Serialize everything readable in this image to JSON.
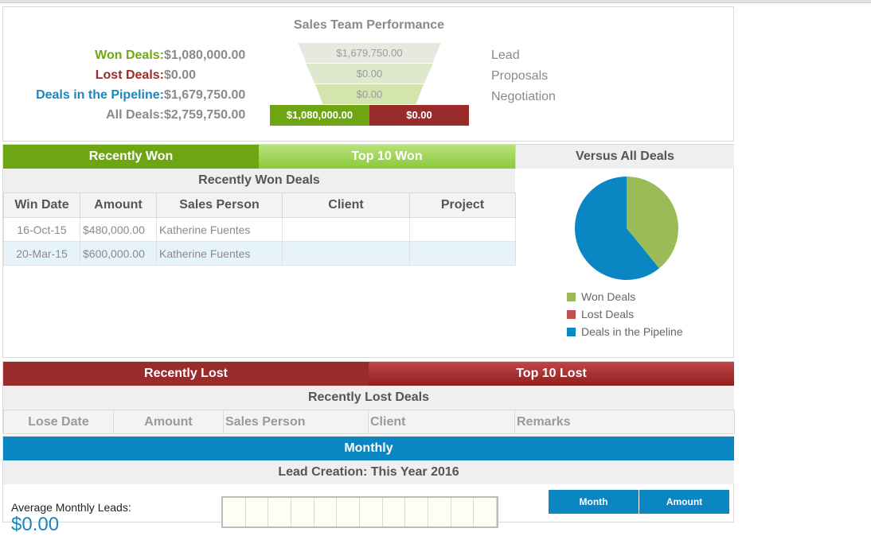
{
  "performance": {
    "title": "Sales Team Performance",
    "stats": [
      {
        "label": "Won Deals:",
        "value": "$1,080,000.00"
      },
      {
        "label": "Lost Deals:",
        "value": "$0.00"
      },
      {
        "label": "Deals in the Pipeline:",
        "value": "$1,679,750.00"
      },
      {
        "label": "All Deals:",
        "value": "$2,759,750.00"
      }
    ],
    "funnel": {
      "lead": "$1,679,750.00",
      "proposals": "$0.00",
      "negotiation": "$0.00",
      "won": "$1,080,000.00",
      "lost": "$0.00"
    },
    "stages": [
      "Lead",
      "Proposals",
      "Negotiation"
    ]
  },
  "won": {
    "tabs": [
      "Recently Won",
      "Top 10 Won"
    ],
    "versus_title": "Versus All Deals",
    "subtitle": "Recently Won Deals",
    "columns": [
      "Win Date",
      "Amount",
      "Sales Person",
      "Client",
      "Project"
    ],
    "rows": [
      {
        "date": "16-Oct-15",
        "amount": "$480,000.00",
        "person": "Katherine Fuentes",
        "client": "",
        "project": ""
      },
      {
        "date": "20-Mar-15",
        "amount": "$600,000.00",
        "person": "Katherine Fuentes",
        "client": "",
        "project": ""
      }
    ]
  },
  "chart_data": {
    "type": "pie",
    "title": "",
    "categories": [
      "Won Deals",
      "Lost Deals",
      "Deals in the Pipeline"
    ],
    "values": [
      1080000,
      0,
      1679750
    ],
    "colors": [
      "#9bbb59",
      "#c0504d",
      "#0a86c2"
    ],
    "legend_position": "bottom"
  },
  "lost": {
    "tabs": [
      "Recently Lost",
      "Top 10 Lost"
    ],
    "subtitle": "Recently Lost Deals",
    "columns": [
      "Lose Date",
      "Amount",
      "Sales Person",
      "Client",
      "Remarks"
    ]
  },
  "monthly": {
    "title": "Monthly",
    "subtitle": "Lead Creation: This Year 2016",
    "avg_label": "Average Monthly Leads:",
    "avg_value": "$0.00",
    "table_columns": [
      "Month",
      "Amount"
    ]
  },
  "colors": {
    "won": "#6ea613",
    "lost": "#992b2b",
    "pipeline": "#0a86c2"
  }
}
